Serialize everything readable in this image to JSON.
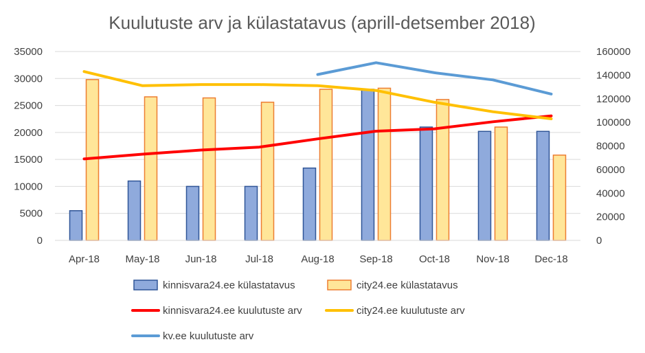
{
  "chart_data": {
    "type": "bar",
    "title": "Kuulutuste arv ja külastatavus (aprill-detsember 2018)",
    "categories": [
      "Apr-18",
      "May-18",
      "Jun-18",
      "Jul-18",
      "Aug-18",
      "Sep-18",
      "Oct-18",
      "Nov-18",
      "Dec-18"
    ],
    "y_left": {
      "min": 0,
      "max": 35000,
      "ticks": [
        "0",
        "5000",
        "10000",
        "15000",
        "20000",
        "25000",
        "30000",
        "35000"
      ]
    },
    "y_right": {
      "min": 0,
      "max": 160000,
      "ticks": [
        "0",
        "20000",
        "40000",
        "60000",
        "80000",
        "100000",
        "120000",
        "140000",
        "160000"
      ]
    },
    "grid": true,
    "legend_position": "bottom",
    "series": [
      {
        "name": "kinnisvara24.ee külastatavus",
        "kind": "bar",
        "axis": "left",
        "color": "#8faadc",
        "stroke": "#2f5597",
        "values": [
          5500,
          11000,
          10000,
          10000,
          13400,
          28000,
          21000,
          20200,
          20200
        ]
      },
      {
        "name": "city24.ee külastatavus",
        "kind": "bar",
        "axis": "left",
        "color": "#ffe699",
        "stroke": "#ed7d31",
        "values": [
          29800,
          26600,
          26400,
          25600,
          28000,
          28200,
          26100,
          21000,
          15800
        ]
      },
      {
        "name": "kinnisvara24.ee kuulutuste arv",
        "kind": "line",
        "axis": "right",
        "color": "#ff0000",
        "values": [
          69000,
          73000,
          76500,
          79000,
          86000,
          92500,
          94500,
          100500,
          105500
        ]
      },
      {
        "name": "city24.ee kuulutuste arv",
        "kind": "line",
        "axis": "right",
        "color": "#ffc000",
        "values": [
          143000,
          131000,
          132000,
          132000,
          131000,
          127000,
          117000,
          109000,
          103000
        ]
      },
      {
        "name": "kv.ee kuulutuste arv",
        "kind": "line",
        "axis": "right",
        "color": "#5b9bd5",
        "values": [
          null,
          null,
          null,
          null,
          140500,
          150500,
          142000,
          136000,
          124000
        ]
      }
    ]
  }
}
